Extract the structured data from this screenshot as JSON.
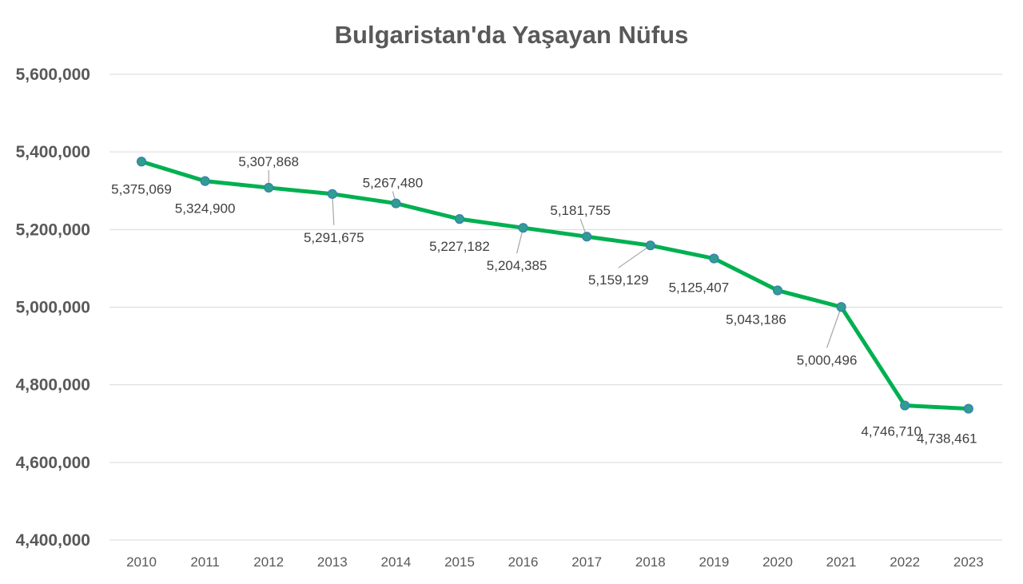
{
  "chart_data": {
    "type": "line",
    "title": "Bulgaristan'da Yaşayan Nüfus",
    "xlabel": "",
    "ylabel": "",
    "categories": [
      "2010",
      "2011",
      "2012",
      "2013",
      "2014",
      "2015",
      "2016",
      "2017",
      "2018",
      "2019",
      "2020",
      "2021",
      "2022",
      "2023"
    ],
    "series": [
      {
        "values": [
          5375069,
          5324900,
          5307868,
          5291675,
          5267480,
          5227182,
          5204385,
          5181755,
          5159129,
          5125407,
          5043186,
          5000496,
          4746710,
          4738461
        ],
        "labels": [
          "5,375,069",
          "5,324,900",
          "5,307,868",
          "5,291,675",
          "5,267,480",
          "5,227,182",
          "5,204,385",
          "5,181,755",
          "5,159,129",
          "5,125,407",
          "5,043,186",
          "5,000,496",
          "4,746,710",
          "4,738,461"
        ],
        "color": "#00b050",
        "marker_color": "#2e9e8e"
      }
    ],
    "ylim": [
      4400000,
      5600000
    ],
    "yticks": [
      4400000,
      4600000,
      4800000,
      5000000,
      5200000,
      5400000,
      5600000
    ],
    "ytick_labels": [
      "4,400,000",
      "4,600,000",
      "4,800,000",
      "5,000,000",
      "5,200,000",
      "5,400,000",
      "5,600,000"
    ],
    "grid": true,
    "legend": "none"
  }
}
